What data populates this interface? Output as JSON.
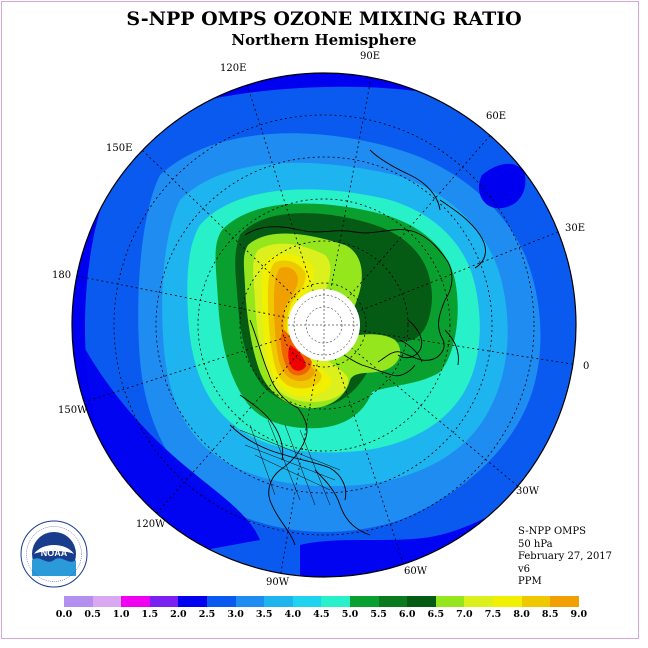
{
  "title": "S-NPP OMPS OZONE MIXING RATIO",
  "subtitle": "Northern Hemisphere",
  "longitude_labels": {
    "lon_90e": "90E",
    "lon_120e": "120E",
    "lon_60e": "60E",
    "lon_150e": "150E",
    "lon_30e": "30E",
    "lon_180": "180",
    "lon_0": "0",
    "lon_150w": "150W",
    "lon_30w": "30W",
    "lon_120w": "120W",
    "lon_60w": "60W",
    "lon_90w": "90W"
  },
  "info": {
    "instrument": "S-NPP OMPS",
    "level": "50 hPa",
    "date": "February 27, 2017",
    "version": "v6",
    "units": "PPM"
  },
  "logo": {
    "text": "NOAA",
    "ring_text": "NATIONAL OCEANIC AND ATMOSPHERIC ADMINISTRATION · U.S. DEPARTMENT OF COMMERCE"
  },
  "colorbar": {
    "colors": [
      "#b38ff0",
      "#d8a8f0",
      "#f000f0",
      "#7a20f0",
      "#0000f0",
      "#0a5af0",
      "#1e8cf0",
      "#1eb4f0",
      "#1ed2f0",
      "#28f0c8",
      "#0aa030",
      "#0a7a1e",
      "#055a14",
      "#96e61e",
      "#dcf01e",
      "#f0f000",
      "#f0c800",
      "#f0a000",
      "#f06400",
      "#f00000",
      "#8c5a3c"
    ],
    "labels": [
      "0.0",
      "0.5",
      "1.0",
      "1.5",
      "2.0",
      "2.5",
      "3.0",
      "3.5",
      "4.0",
      "4.5",
      "5.0",
      "5.5",
      "6.0",
      "6.5",
      "7.0",
      "7.5",
      "8.0",
      "8.5",
      "9.0"
    ]
  },
  "map_colors": {
    "c20": "#0000f0",
    "c25": "#0a5af0",
    "c30": "#1e8cf0",
    "c35": "#1eb4f0",
    "c40": "#28f0c8",
    "c45": "#0aa030",
    "c50": "#055a14",
    "c55": "#96e61e",
    "c60": "#dcf01e",
    "c65": "#f0f000",
    "c70": "#f0c800",
    "c75": "#f0a000",
    "c80": "#f06400",
    "c85": "#f00000"
  }
}
